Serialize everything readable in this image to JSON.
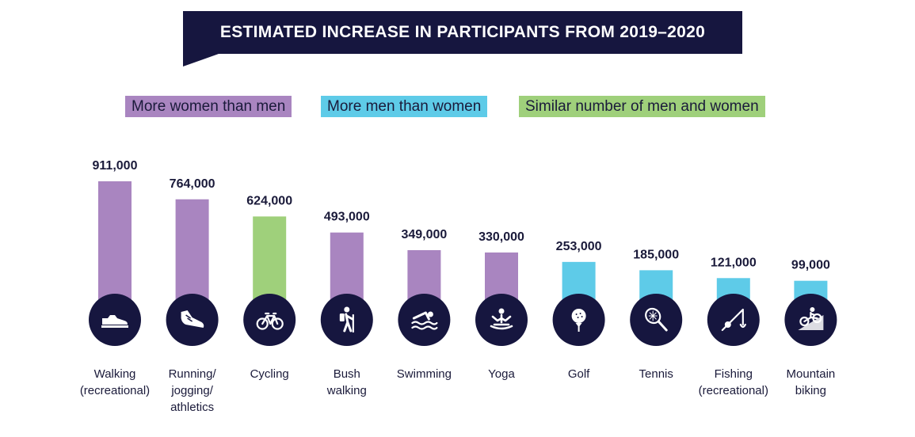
{
  "title": "ESTIMATED INCREASE IN PARTICIPANTS FROM 2019–2020",
  "legend": [
    {
      "label": "More women than men",
      "color": "#a985c0",
      "key": "women"
    },
    {
      "label": "More men than women",
      "color": "#5ecbe8",
      "key": "men"
    },
    {
      "label": "Similar number of men and women",
      "color": "#9fd07b",
      "key": "similar"
    }
  ],
  "colors": {
    "women": "#a985c0",
    "men": "#5ecbe8",
    "similar": "#9fd07b",
    "circle": "#16163f",
    "text": "#1a1a3a"
  },
  "chart_data": {
    "type": "bar",
    "title": "ESTIMATED INCREASE IN PARTICIPANTS FROM 2019–2020",
    "categories": [
      "Walking (recreational)",
      "Running/ jogging/ athletics",
      "Cycling",
      "Bush walking",
      "Swimming",
      "Yoga",
      "Golf",
      "Tennis",
      "Fishing (recreational)",
      "Mountain biking"
    ],
    "category_lines": [
      [
        "Walking",
        "(recreational)"
      ],
      [
        "Running/",
        "jogging/",
        "athletics"
      ],
      [
        "Cycling"
      ],
      [
        "Bush",
        "walking"
      ],
      [
        "Swimming"
      ],
      [
        "Yoga"
      ],
      [
        "Golf"
      ],
      [
        "Tennis"
      ],
      [
        "Fishing",
        "(recreational)"
      ],
      [
        "Mountain",
        "biking"
      ]
    ],
    "values": [
      911000,
      764000,
      624000,
      493000,
      349000,
      330000,
      253000,
      185000,
      121000,
      99000
    ],
    "value_labels": [
      "911,000",
      "764,000",
      "624,000",
      "493,000",
      "349,000",
      "330,000",
      "253,000",
      "185,000",
      "121,000",
      "99,000"
    ],
    "groups": [
      "women",
      "women",
      "similar",
      "women",
      "women",
      "women",
      "men",
      "men",
      "men",
      "men"
    ],
    "icons": [
      "shoe-icon",
      "running-shoe-icon",
      "bicycle-icon",
      "hiker-icon",
      "swimmer-icon",
      "yoga-icon",
      "golf-ball-icon",
      "tennis-racket-icon",
      "fishing-rod-icon",
      "mountain-bike-icon"
    ],
    "xlabel": "",
    "ylabel": "",
    "ylim": [
      0,
      1000000
    ],
    "grid": false
  }
}
